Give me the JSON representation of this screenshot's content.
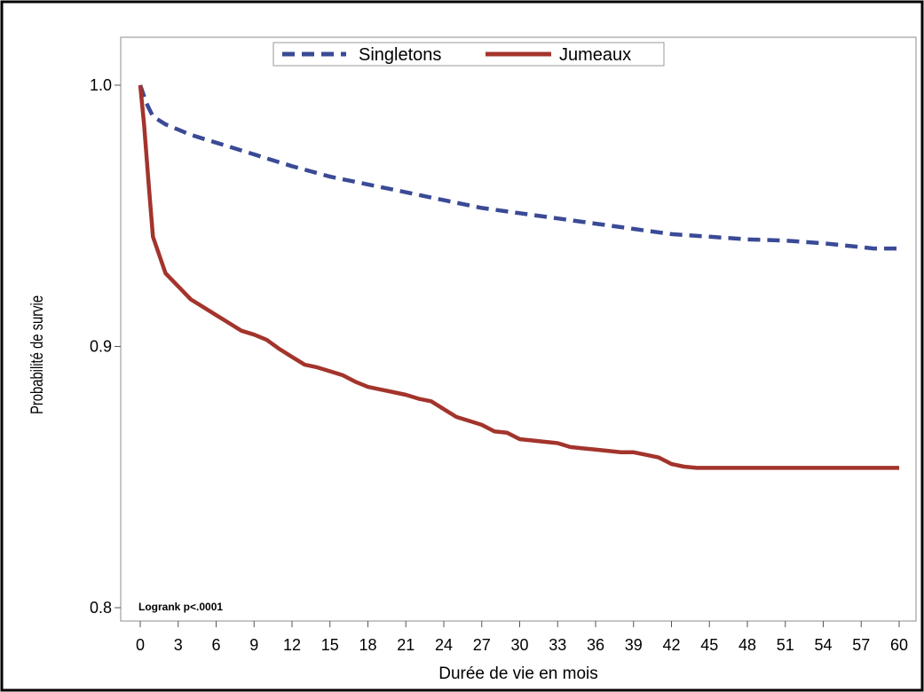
{
  "chart_data": {
    "type": "line",
    "title": "",
    "xlabel": "Durée de vie en mois",
    "ylabel": "Probabilité de survie",
    "xlim": [
      0,
      60
    ],
    "ylim": [
      0.8,
      1.0
    ],
    "x_ticks": [
      0,
      3,
      6,
      9,
      12,
      15,
      18,
      21,
      24,
      27,
      30,
      33,
      36,
      39,
      42,
      45,
      48,
      51,
      54,
      57,
      60
    ],
    "y_ticks": [
      0.8,
      0.9,
      1.0
    ],
    "y_tick_labels": [
      "0.8",
      "0.9",
      "1.0"
    ],
    "grid": false,
    "legend_position": "top-center",
    "annotation": "Logrank p<.0001",
    "series": [
      {
        "name": "Singletons",
        "color": "#3a4a96",
        "style": "dashed",
        "x": [
          0,
          0.5,
          1,
          2,
          3,
          4,
          6,
          8,
          10,
          12,
          15,
          18,
          21,
          24,
          27,
          30,
          33,
          36,
          39,
          42,
          45,
          48,
          51,
          54,
          57,
          58,
          60
        ],
        "y": [
          1.0,
          0.993,
          0.988,
          0.985,
          0.983,
          0.981,
          0.978,
          0.975,
          0.972,
          0.969,
          0.965,
          0.962,
          0.959,
          0.956,
          0.953,
          0.951,
          0.949,
          0.947,
          0.945,
          0.943,
          0.942,
          0.941,
          0.9405,
          0.9395,
          0.938,
          0.9375,
          0.9375
        ]
      },
      {
        "name": "Jumeaux",
        "color": "#a3342c",
        "style": "solid",
        "x": [
          0,
          0.3,
          0.7,
          1,
          2,
          3,
          4,
          5,
          6,
          7,
          8,
          9,
          10,
          11,
          12,
          13,
          14,
          15,
          16,
          17,
          18,
          19,
          20,
          21,
          22,
          23,
          24,
          25,
          26,
          27,
          28,
          29,
          30,
          31,
          32,
          33,
          34,
          35,
          36,
          37,
          38,
          39,
          40,
          41,
          42,
          43,
          44,
          50,
          55,
          60
        ],
        "y": [
          1.0,
          0.985,
          0.96,
          0.942,
          0.928,
          0.923,
          0.918,
          0.915,
          0.912,
          0.909,
          0.906,
          0.9045,
          0.9025,
          0.899,
          0.896,
          0.893,
          0.892,
          0.8905,
          0.889,
          0.8865,
          0.8845,
          0.8835,
          0.8825,
          0.8815,
          0.88,
          0.879,
          0.876,
          0.873,
          0.8715,
          0.87,
          0.8675,
          0.867,
          0.8645,
          0.864,
          0.8635,
          0.863,
          0.8615,
          0.861,
          0.8605,
          0.86,
          0.8595,
          0.8595,
          0.8585,
          0.8575,
          0.855,
          0.854,
          0.8535,
          0.8535,
          0.8535,
          0.8535
        ]
      }
    ]
  }
}
